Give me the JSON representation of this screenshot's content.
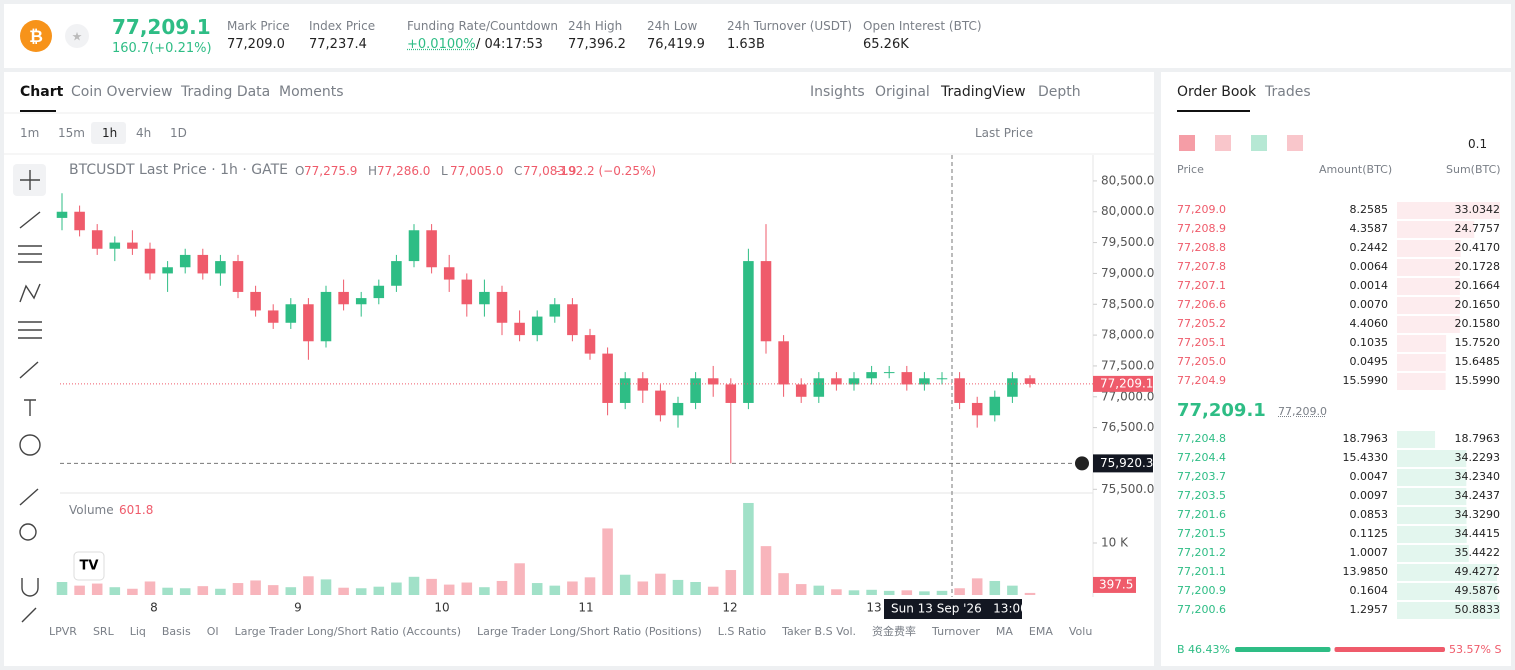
{
  "header": {
    "price": "77,209.1",
    "change": "160.7(+0.21%)",
    "stats": [
      {
        "label": "Mark Price",
        "value": "77,209.0"
      },
      {
        "label": "Index Price",
        "value": "77,237.4"
      },
      {
        "label": "Funding Rate/Countdown",
        "value": "+0.0100%",
        "extra": "/ 04:17:53"
      },
      {
        "label": "24h High",
        "value": "77,396.2"
      },
      {
        "label": "24h Low",
        "value": "76,419.9"
      },
      {
        "label": "24h Turnover (USDT)",
        "value": "1.63B"
      },
      {
        "label": "Open Interest (BTC)",
        "value": "65.26K"
      }
    ]
  },
  "tabs": [
    "Chart",
    "Coin Overview",
    "Trading Data",
    "Moments"
  ],
  "views": [
    "Insights",
    "Original",
    "TradingView",
    "Depth"
  ],
  "intervals": [
    "1m",
    "15m",
    "1h",
    "4h",
    "1D"
  ],
  "price_type": "Last Price",
  "chart_data": {
    "type": "candlestick",
    "title": "BTCUSDT Last Price · 1h · GATE",
    "ohlc_keys": [
      "O",
      "H",
      "L",
      "C"
    ],
    "ohlc_values": [
      "77,275.9",
      "77,286.0",
      "77,005.0",
      "77,083.9"
    ],
    "change": "-192.2 (−0.25%)",
    "up_color": "#2ebd85",
    "down_color": "#ef5b6b",
    "ohlc": [
      [
        79900,
        80300,
        79700,
        80000
      ],
      [
        80000,
        80100,
        79600,
        79700
      ],
      [
        79700,
        79800,
        79300,
        79400
      ],
      [
        79400,
        79600,
        79200,
        79500
      ],
      [
        79500,
        79700,
        79300,
        79400
      ],
      [
        79400,
        79500,
        78900,
        79000
      ],
      [
        79000,
        79200,
        78700,
        79100
      ],
      [
        79100,
        79400,
        79000,
        79300
      ],
      [
        79300,
        79400,
        78900,
        79000
      ],
      [
        79000,
        79300,
        78800,
        79200
      ],
      [
        79200,
        79300,
        78600,
        78700
      ],
      [
        78700,
        78800,
        78300,
        78400
      ],
      [
        78400,
        78500,
        78100,
        78200
      ],
      [
        78200,
        78600,
        78100,
        78500
      ],
      [
        78500,
        78600,
        77600,
        77900
      ],
      [
        77900,
        78800,
        77800,
        78700
      ],
      [
        78700,
        78900,
        78400,
        78500
      ],
      [
        78500,
        78700,
        78300,
        78600
      ],
      [
        78600,
        78900,
        78500,
        78800
      ],
      [
        78800,
        79300,
        78700,
        79200
      ],
      [
        79200,
        79800,
        79100,
        79700
      ],
      [
        79700,
        79800,
        79000,
        79100
      ],
      [
        79100,
        79300,
        78700,
        78900
      ],
      [
        78900,
        79000,
        78300,
        78500
      ],
      [
        78500,
        78900,
        78300,
        78700
      ],
      [
        78700,
        78800,
        78000,
        78200
      ],
      [
        78200,
        78400,
        77900,
        78000
      ],
      [
        78000,
        78400,
        77900,
        78300
      ],
      [
        78300,
        78600,
        78200,
        78500
      ],
      [
        78500,
        78600,
        77900,
        78000
      ],
      [
        78000,
        78100,
        77600,
        77700
      ],
      [
        77700,
        77800,
        76700,
        76900
      ],
      [
        76900,
        77400,
        76800,
        77300
      ],
      [
        77300,
        77400,
        76900,
        77100
      ],
      [
        77100,
        77200,
        76600,
        76700
      ],
      [
        76700,
        77000,
        76500,
        76900
      ],
      [
        76900,
        77400,
        76800,
        77300
      ],
      [
        77300,
        77500,
        77000,
        77200
      ],
      [
        77200,
        77300,
        75920,
        76900
      ],
      [
        76900,
        79400,
        76800,
        79200
      ],
      [
        79200,
        79800,
        77700,
        77900
      ],
      [
        77900,
        78000,
        77000,
        77200
      ],
      [
        77200,
        77300,
        76900,
        77000
      ],
      [
        77000,
        77400,
        76900,
        77300
      ],
      [
        77300,
        77400,
        77100,
        77200
      ],
      [
        77200,
        77400,
        77100,
        77300
      ],
      [
        77300,
        77500,
        77200,
        77400
      ],
      [
        77400,
        77500,
        77300,
        77400
      ],
      [
        77400,
        77500,
        77100,
        77200
      ],
      [
        77200,
        77400,
        77100,
        77300
      ],
      [
        77300,
        77400,
        77200,
        77300
      ],
      [
        77300,
        77400,
        76800,
        76900
      ],
      [
        76900,
        77000,
        76500,
        76700
      ],
      [
        76700,
        77100,
        76600,
        77000
      ],
      [
        77000,
        77400,
        76900,
        77300
      ],
      [
        77300,
        77350,
        77150,
        77209
      ]
    ],
    "volumes": [
      2500,
      1800,
      2200,
      1500,
      1200,
      2600,
      1400,
      1300,
      1700,
      1200,
      2300,
      2800,
      1900,
      1500,
      3600,
      3000,
      1400,
      1300,
      1600,
      2400,
      3500,
      3100,
      2000,
      2400,
      1500,
      2700,
      6100,
      2300,
      1800,
      2600,
      3400,
      12800,
      3900,
      2600,
      4100,
      2900,
      2500,
      1600,
      4800,
      17700,
      9400,
      4200,
      2100,
      1800,
      1100,
      900,
      1000,
      800,
      900,
      700,
      800,
      1300,
      3200,
      2700,
      1800,
      400
    ],
    "x_labels": [
      "8",
      "9",
      "10",
      "11",
      "12",
      "13"
    ],
    "ylim": [
      75440,
      80920
    ],
    "yticks": [
      {
        "value": 80500,
        "label": "80,500.0"
      },
      {
        "value": 80000,
        "label": "80,000.0"
      },
      {
        "value": 79500,
        "label": "79,500.0"
      },
      {
        "value": 79000,
        "label": "79,000.0"
      },
      {
        "value": 78500,
        "label": "78,500.0"
      },
      {
        "value": 78000,
        "label": "78,000.0"
      },
      {
        "value": 77500,
        "label": "77,500.0"
      },
      {
        "value": 77000,
        "label": "77,000.0"
      },
      {
        "value": 76500,
        "label": "76,500.0"
      },
      {
        "value": 75500,
        "label": "75,500.0"
      }
    ],
    "vlim": [
      0,
      18850
    ],
    "vticks": [
      {
        "value": 10000,
        "label": "10 K"
      }
    ],
    "last_price": {
      "value": 77209.1,
      "label": "77,209.1"
    },
    "crosshair_price": {
      "value": 75920.3,
      "label": "75,920.3"
    },
    "crosshair_time": "Sun 13 Sep '26   13:00",
    "volume_title": "Volume",
    "volume_value": "601.8",
    "last_volume": {
      "value": 397.5,
      "label": "397.5"
    },
    "grid": false
  },
  "order_book": {
    "tabs": [
      "Order Book",
      "Trades"
    ],
    "step": "0.1",
    "columns": [
      "Price",
      "Amount(BTC)",
      "Sum(BTC)"
    ],
    "asks": {
      "prices": [
        "77,209.0",
        "77,208.9",
        "77,208.8",
        "77,207.8",
        "77,207.1",
        "77,206.6",
        "77,205.2",
        "77,205.1",
        "77,205.0",
        "77,204.9"
      ],
      "amounts": [
        "8.2585",
        "4.3587",
        "0.2442",
        "0.0064",
        "0.0014",
        "0.0070",
        "4.4060",
        "0.1035",
        "0.0495",
        "15.5990"
      ],
      "sums": [
        33.0342,
        24.7757,
        20.417,
        20.1728,
        20.1664,
        20.165,
        20.158,
        15.752,
        15.6485,
        15.599
      ],
      "sum_labels": [
        "33.0342",
        "24.7757",
        "20.4170",
        "20.1728",
        "20.1664",
        "20.1650",
        "20.1580",
        "15.7520",
        "15.6485",
        "15.5990"
      ]
    },
    "last": "77,209.1",
    "mark": "77,209.0",
    "bids": {
      "prices": [
        "77,204.8",
        "77,204.4",
        "77,203.7",
        "77,203.5",
        "77,201.6",
        "77,201.5",
        "77,201.2",
        "77,201.1",
        "77,200.9",
        "77,200.6"
      ],
      "amounts": [
        "18.7963",
        "15.4330",
        "0.0047",
        "0.0097",
        "0.0853",
        "0.1125",
        "1.0007",
        "13.9850",
        "0.1604",
        "1.2957"
      ],
      "sums": [
        18.7963,
        34.2293,
        34.234,
        34.2437,
        34.329,
        34.4415,
        35.4422,
        49.4272,
        49.5876,
        50.8833
      ],
      "sum_labels": [
        "18.7963",
        "34.2293",
        "34.2340",
        "34.2437",
        "34.3290",
        "34.4415",
        "35.4422",
        "49.4272",
        "49.5876",
        "50.8833"
      ]
    },
    "ratio": {
      "values": [
        46.43,
        53.57
      ],
      "value_labels": [
        "B 46.43%",
        "53.57% S"
      ]
    }
  },
  "indicators": [
    "LPVR",
    "SRL",
    "Liq",
    "Basis",
    "OI",
    "Large Trader Long/Short Ratio (Accounts)",
    "Large Trader Long/Short Ratio (Positions)",
    "L.S Ratio",
    "Taker B.S Vol.",
    "资金费率",
    "Turnover",
    "MA",
    "EMA",
    "Volu"
  ]
}
